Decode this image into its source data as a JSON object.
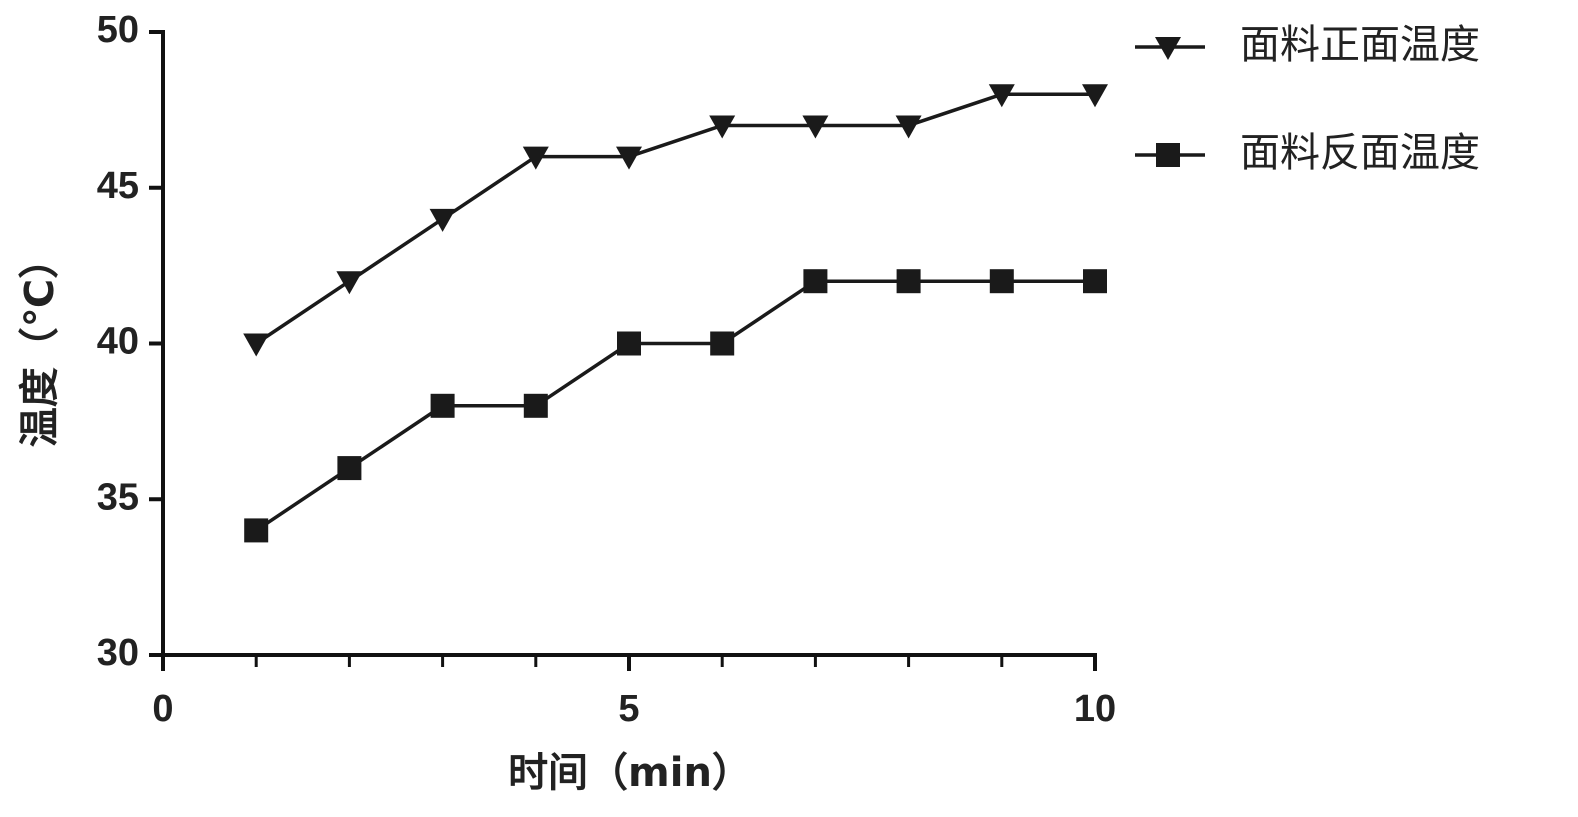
{
  "chart_data": {
    "type": "line",
    "x": [
      1,
      2,
      3,
      4,
      5,
      6,
      7,
      8,
      9,
      10
    ],
    "series": [
      {
        "name": "面料正面温度",
        "color": "#1a1a1a",
        "marker": "triangle-down",
        "values": [
          40,
          42,
          44,
          46,
          46,
          47,
          47,
          47,
          48,
          48
        ]
      },
      {
        "name": "面料反面温度",
        "color": "#1a1a1a",
        "marker": "square",
        "values": [
          34,
          36,
          38,
          38,
          40,
          40,
          42,
          42,
          42,
          42
        ]
      }
    ],
    "xlabel": "时间（min）",
    "ylabel": "温度（℃）",
    "xlim": [
      0,
      10
    ],
    "xticks": [
      0,
      5,
      10
    ],
    "xminorticks": [
      1,
      2,
      3,
      4,
      6,
      7,
      8,
      9
    ],
    "ylim": [
      30,
      50
    ],
    "yticks": [
      30,
      35,
      40,
      45,
      50
    ],
    "grid": false,
    "legend": "outside-upper-right"
  }
}
